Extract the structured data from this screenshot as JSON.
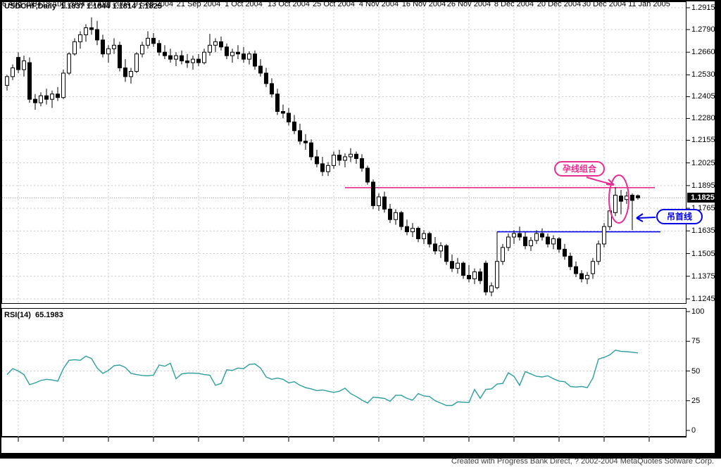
{
  "window": {
    "title_line": "USDCHF,Daily  1.1837 1.1844 1.1814 1.1825",
    "symbol": "USDCHF",
    "timeframe": "Daily",
    "open": "1.1837",
    "high": "1.1844",
    "low": "1.1814",
    "close": "1.1825"
  },
  "indicator": {
    "label_line": "RSI(14)  65.1983",
    "name": "RSI(14)",
    "value": "65.1983"
  },
  "price_axis": {
    "labels": [
      "1.2915",
      "1.2790",
      "1.2660",
      "1.2530",
      "1.2405",
      "1.2280",
      "1.2155",
      "1.2025",
      "1.1895",
      "1.1765",
      "1.1635",
      "1.1505",
      "1.1375",
      "1.1245"
    ],
    "current_price_label": "1.1825"
  },
  "rsi_axis": {
    "labels": [
      "100",
      "75",
      "50",
      "25",
      "0"
    ]
  },
  "date_axis": {
    "labels": [
      "6 Aug 2004",
      "18 Aug 2004",
      "30 Aug 2004",
      "9 Sep 2004",
      "21 Sep 2004",
      "1 Oct 2004",
      "13 Oct 2004",
      "25 Oct 2004",
      "4 Nov 2004",
      "16 Nov 2004",
      "26 Nov 2004",
      "8 Dec 2004",
      "20 Dec 2004",
      "30 Dec 2004",
      "11 Jan 2005"
    ]
  },
  "annotations": {
    "harami": {
      "text": "孕线组合",
      "color": "#ea2c92"
    },
    "hanging_man": {
      "text": "吊首线",
      "color": "#0000e6"
    }
  },
  "footer": {
    "credit": "Created with Progress Bank Direct, ? 2002-2004 MetaQuotes Sofware Corp."
  },
  "colors": {
    "pink": "#ea2c92",
    "blue": "#0000e6",
    "rsi_line": "#2d9e9e",
    "grid": "#c9c9c9",
    "current_price_line": "#909090"
  },
  "chart_data": [
    {
      "type": "candlestick",
      "title": "USDCHF Daily",
      "ylabel": "price",
      "ylim": [
        1.1245,
        1.2915
      ],
      "y_ticks": [
        1.2915,
        1.279,
        1.266,
        1.253,
        1.2405,
        1.228,
        1.2155,
        1.2025,
        1.1895,
        1.1765,
        1.1635,
        1.1505,
        1.1375,
        1.1245
      ],
      "x_tick_labels": [
        "6 Aug 2004",
        "18 Aug 2004",
        "30 Aug 2004",
        "9 Sep 2004",
        "21 Sep 2004",
        "1 Oct 2004",
        "13 Oct 2004",
        "25 Oct 2004",
        "4 Nov 2004",
        "16 Nov 2004",
        "26 Nov 2004",
        "8 Dec 2004",
        "20 Dec 2004",
        "30 Dec 2004",
        "11 Jan 2005"
      ],
      "current_price": 1.1825,
      "last_bar": {
        "open": 1.1837,
        "high": 1.1844,
        "low": 1.1814,
        "close": 1.1825
      },
      "grid": true,
      "ohlc": [
        [
          1.247,
          1.253,
          1.244,
          1.252
        ],
        [
          1.252,
          1.259,
          1.25,
          1.257
        ],
        [
          1.263,
          1.266,
          1.254,
          1.256
        ],
        [
          1.256,
          1.264,
          1.252,
          1.261
        ],
        [
          1.26,
          1.263,
          1.237,
          1.239
        ],
        [
          1.239,
          1.242,
          1.233,
          1.237
        ],
        [
          1.237,
          1.243,
          1.235,
          1.241
        ],
        [
          1.241,
          1.245,
          1.236,
          1.239
        ],
        [
          1.239,
          1.244,
          1.234,
          1.242
        ],
        [
          1.242,
          1.246,
          1.238,
          1.24
        ],
        [
          1.24,
          1.256,
          1.239,
          1.254
        ],
        [
          1.254,
          1.266,
          1.253,
          1.265
        ],
        [
          1.265,
          1.274,
          1.264,
          1.272
        ],
        [
          1.272,
          1.278,
          1.268,
          1.276
        ],
        [
          1.276,
          1.282,
          1.272,
          1.28
        ],
        [
          1.28,
          1.286,
          1.276,
          1.279
        ],
        [
          1.279,
          1.284,
          1.27,
          1.273
        ],
        [
          1.273,
          1.276,
          1.263,
          1.265
        ],
        [
          1.265,
          1.27,
          1.26,
          1.268
        ],
        [
          1.268,
          1.274,
          1.265,
          1.27
        ],
        [
          1.27,
          1.272,
          1.255,
          1.257
        ],
        [
          1.257,
          1.262,
          1.249,
          1.252
        ],
        [
          1.252,
          1.257,
          1.248,
          1.255
        ],
        [
          1.255,
          1.266,
          1.254,
          1.265
        ],
        [
          1.265,
          1.272,
          1.263,
          1.27
        ],
        [
          1.27,
          1.278,
          1.268,
          1.274
        ],
        [
          1.274,
          1.277,
          1.269,
          1.271
        ],
        [
          1.271,
          1.273,
          1.264,
          1.266
        ],
        [
          1.266,
          1.27,
          1.262,
          1.264
        ],
        [
          1.264,
          1.268,
          1.26,
          1.262
        ],
        [
          1.262,
          1.266,
          1.258,
          1.264
        ],
        [
          1.264,
          1.267,
          1.259,
          1.261
        ],
        [
          1.261,
          1.265,
          1.257,
          1.26
        ],
        [
          1.26,
          1.264,
          1.256,
          1.262
        ],
        [
          1.262,
          1.265,
          1.258,
          1.26
        ],
        [
          1.26,
          1.268,
          1.259,
          1.266
        ],
        [
          1.266,
          1.2765,
          1.264,
          1.27
        ],
        [
          1.27,
          1.274,
          1.266,
          1.272
        ],
        [
          1.272,
          1.275,
          1.267,
          1.269
        ],
        [
          1.269,
          1.271,
          1.262,
          1.264
        ],
        [
          1.264,
          1.268,
          1.26,
          1.266
        ],
        [
          1.266,
          1.27,
          1.262,
          1.265
        ],
        [
          1.265,
          1.269,
          1.26,
          1.262
        ],
        [
          1.262,
          1.2665,
          1.259,
          1.265
        ],
        [
          1.265,
          1.267,
          1.256,
          1.258
        ],
        [
          1.258,
          1.262,
          1.252,
          1.254
        ],
        [
          1.254,
          1.257,
          1.246,
          1.248
        ],
        [
          1.248,
          1.251,
          1.24,
          1.242
        ],
        [
          1.242,
          1.245,
          1.23,
          1.232
        ],
        [
          1.232,
          1.236,
          1.228,
          1.231
        ],
        [
          1.231,
          1.234,
          1.224,
          1.226
        ],
        [
          1.226,
          1.23,
          1.219,
          1.221
        ],
        [
          1.221,
          1.225,
          1.213,
          1.215
        ],
        [
          1.215,
          1.219,
          1.21,
          1.214
        ],
        [
          1.214,
          1.216,
          1.204,
          1.206
        ],
        [
          1.206,
          1.21,
          1.2,
          1.202
        ],
        [
          1.202,
          1.206,
          1.195,
          1.1975
        ],
        [
          1.1975,
          1.203,
          1.195,
          1.201
        ],
        [
          1.201,
          1.209,
          1.199,
          1.207
        ],
        [
          1.207,
          1.21,
          1.201,
          1.204
        ],
        [
          1.204,
          1.208,
          1.2,
          1.206
        ],
        [
          1.206,
          1.211,
          1.203,
          1.2075
        ],
        [
          1.2075,
          1.209,
          1.202,
          1.205
        ],
        [
          1.205,
          1.2075,
          1.1975,
          1.1995
        ],
        [
          1.1995,
          1.201,
          1.19,
          1.1915
        ],
        [
          1.1915,
          1.193,
          1.176,
          1.178
        ],
        [
          1.178,
          1.185,
          1.175,
          1.183
        ],
        [
          1.183,
          1.186,
          1.174,
          1.176
        ],
        [
          1.176,
          1.179,
          1.168,
          1.17
        ],
        [
          1.17,
          1.176,
          1.167,
          1.174
        ],
        [
          1.174,
          1.175,
          1.164,
          1.166
        ],
        [
          1.166,
          1.17,
          1.161,
          1.163
        ],
        [
          1.163,
          1.168,
          1.16,
          1.165
        ],
        [
          1.165,
          1.166,
          1.157,
          1.159
        ],
        [
          1.159,
          1.164,
          1.156,
          1.162
        ],
        [
          1.162,
          1.163,
          1.154,
          1.156
        ],
        [
          1.156,
          1.16,
          1.15,
          1.152
        ],
        [
          1.152,
          1.157,
          1.148,
          1.155
        ],
        [
          1.155,
          1.156,
          1.144,
          1.146
        ],
        [
          1.146,
          1.15,
          1.14,
          1.142
        ],
        [
          1.142,
          1.148,
          1.139,
          1.145
        ],
        [
          1.145,
          1.146,
          1.136,
          1.138
        ],
        [
          1.138,
          1.144,
          1.134,
          1.136
        ],
        [
          1.136,
          1.142,
          1.133,
          1.14
        ],
        [
          1.14,
          1.142,
          1.133,
          1.135
        ],
        [
          1.145,
          1.1465,
          1.1265,
          1.1285
        ],
        [
          1.1285,
          1.134,
          1.126,
          1.132
        ],
        [
          1.131,
          1.163,
          1.13,
          1.146
        ],
        [
          1.146,
          1.156,
          1.144,
          1.154
        ],
        [
          1.154,
          1.162,
          1.152,
          1.16
        ],
        [
          1.16,
          1.164,
          1.156,
          1.162
        ],
        [
          1.162,
          1.166,
          1.158,
          1.16
        ],
        [
          1.16,
          1.163,
          1.153,
          1.155
        ],
        [
          1.155,
          1.16,
          1.152,
          1.158
        ],
        [
          1.158,
          1.164,
          1.156,
          1.162
        ],
        [
          1.162,
          1.165,
          1.158,
          1.16
        ],
        [
          1.16,
          1.162,
          1.154,
          1.156
        ],
        [
          1.156,
          1.161,
          1.153,
          1.159
        ],
        [
          1.159,
          1.16,
          1.151,
          1.153
        ],
        [
          1.153,
          1.156,
          1.147,
          1.149
        ],
        [
          1.149,
          1.151,
          1.141,
          1.143
        ],
        [
          1.143,
          1.146,
          1.137,
          1.139
        ],
        [
          1.139,
          1.141,
          1.134,
          1.136
        ],
        [
          1.136,
          1.14,
          1.133,
          1.138
        ],
        [
          1.139,
          1.148,
          1.136,
          1.146
        ],
        [
          1.146,
          1.158,
          1.144,
          1.156
        ],
        [
          1.156,
          1.168,
          1.154,
          1.166
        ],
        [
          1.166,
          1.177,
          1.164,
          1.175
        ],
        [
          1.174,
          1.1885,
          1.172,
          1.184
        ],
        [
          1.1835,
          1.187,
          1.173,
          1.1805
        ],
        [
          1.1815,
          1.186,
          1.179,
          1.1835
        ],
        [
          1.184,
          1.185,
          1.164,
          1.181
        ],
        [
          1.1837,
          1.1844,
          1.1814,
          1.1825
        ]
      ],
      "trendlines": [
        {
          "price": 1.1883,
          "from_bar": 60,
          "to_bar": 115,
          "color": "#ea2c92",
          "label": "孕线组合"
        },
        {
          "price": 1.163,
          "from_bar": 87,
          "to_bar": 116,
          "color": "#0000e6",
          "label": "吊首线"
        }
      ]
    },
    {
      "type": "line",
      "name": "RSI(14)",
      "current_value": 65.1983,
      "ylim": [
        0,
        100
      ],
      "y_ticks": [
        100,
        75,
        50,
        25,
        0
      ],
      "grid_levels": [
        75,
        50,
        25
      ],
      "color": "#2d9e9e",
      "values": [
        47,
        52,
        50,
        47,
        38.5,
        40,
        42,
        43,
        42.5,
        41.5,
        52,
        59,
        59.5,
        59,
        62.5,
        60.5,
        52.5,
        48,
        50.5,
        54.5,
        55,
        53,
        48,
        47,
        46.3,
        46,
        46.5,
        55,
        54,
        56.5,
        43.5,
        47.5,
        48.2,
        48.2,
        48,
        47,
        46.5,
        38,
        39.5,
        51,
        50.5,
        52.5,
        52,
        55.5,
        56,
        52.5,
        45,
        43,
        44,
        43,
        40,
        41,
        38,
        36,
        35,
        33.5,
        34,
        33,
        32,
        33,
        35.5,
        31,
        28.5,
        25.5,
        23,
        28,
        27.5,
        27,
        24.5,
        29.5,
        29.5,
        27,
        25.5,
        31,
        29,
        28.5,
        25,
        23,
        21,
        21,
        24,
        23.7,
        23.5,
        34.5,
        27,
        34.5,
        35,
        39,
        39.5,
        48.5,
        45.5,
        38,
        49.5,
        47.5,
        45.5,
        45,
        46,
        43.5,
        41.5,
        41,
        37,
        36.5,
        37,
        36,
        44,
        60,
        61.5,
        63.5,
        67.5,
        66.5,
        66.3,
        65.8,
        65.2
      ]
    }
  ]
}
